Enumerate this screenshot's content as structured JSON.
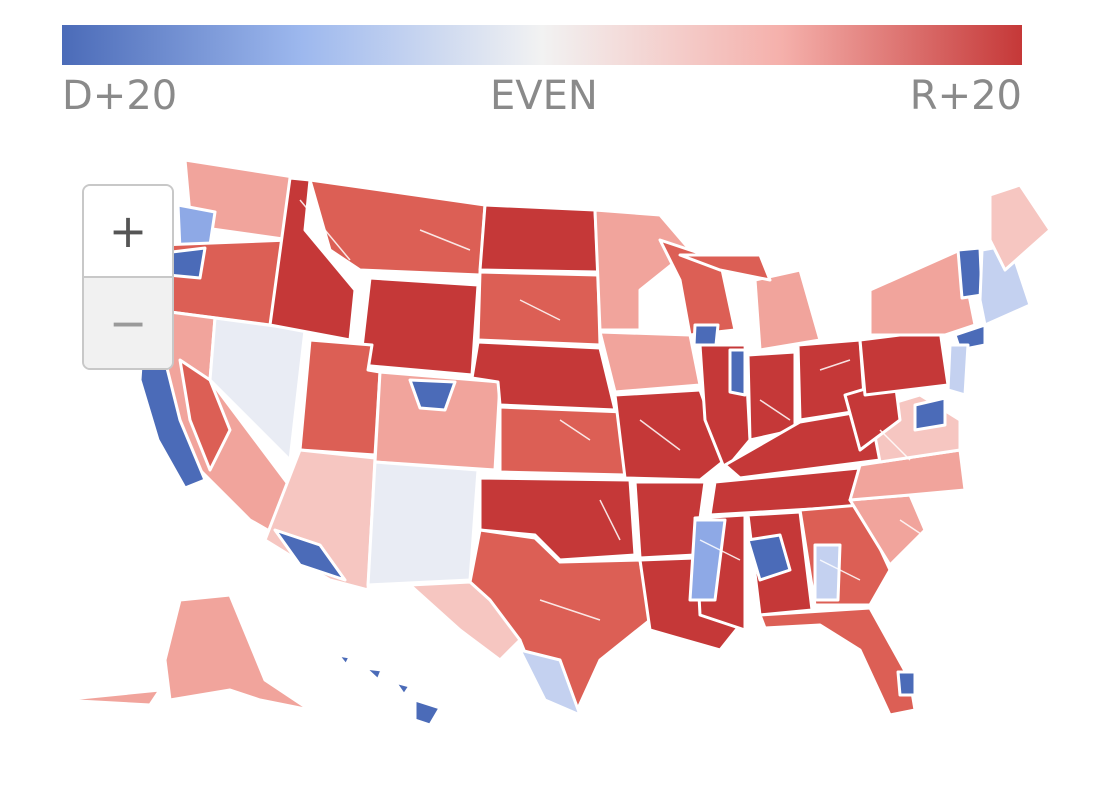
{
  "legend": {
    "left_label": "D+20",
    "center_label": "EVEN",
    "right_label": "R+20",
    "gradient_stops": [
      "#4b6bb8",
      "#9db8ee",
      "#f2f2f2",
      "#f5b0ab",
      "#c53838"
    ]
  },
  "zoom": {
    "zoom_in_label": "+",
    "zoom_out_label": "−"
  },
  "colors": {
    "border": "#ffffff",
    "d20": "#4b6bb8",
    "d10": "#8ea9e6",
    "d5": "#c4d1f0",
    "even": "#e9ecf4",
    "r5": "#f6c6c1",
    "r10": "#f1a49c",
    "r15": "#dc5f55",
    "r20": "#c53838"
  },
  "map": {
    "regions": [
      "Washington",
      "Oregon",
      "California",
      "Nevada",
      "Idaho",
      "Montana",
      "Wyoming",
      "Utah",
      "Arizona",
      "Colorado",
      "New Mexico",
      "North Dakota",
      "South Dakota",
      "Nebraska",
      "Kansas",
      "Oklahoma",
      "Texas",
      "Minnesota",
      "Iowa",
      "Missouri",
      "Arkansas",
      "Louisiana",
      "Wisconsin",
      "Illinois",
      "Michigan",
      "Indiana",
      "Ohio",
      "Kentucky",
      "Tennessee",
      "Mississippi",
      "Alabama",
      "Georgia",
      "Florida",
      "South Carolina",
      "North Carolina",
      "Virginia",
      "West Virginia",
      "Pennsylvania",
      "New York",
      "Maine",
      "New England",
      "Alaska",
      "Hawaii"
    ]
  }
}
